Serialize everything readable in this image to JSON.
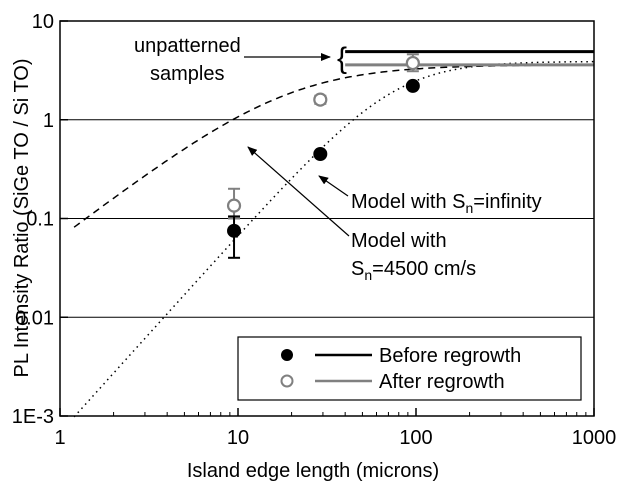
{
  "chart_data": {
    "type": "scatter",
    "xscale": "log",
    "yscale": "log",
    "xlim": [
      1,
      1000
    ],
    "ylim": [
      0.001,
      10
    ],
    "grid": "horizontal",
    "xlabel": "Island edge length (microns)",
    "ylabel": "PL Intensity Ratio (SiGe TO / Si TO)",
    "x_ticks": [
      {
        "value": 1,
        "label": "1"
      },
      {
        "value": 10,
        "label": "10"
      },
      {
        "value": 100,
        "label": "100"
      },
      {
        "value": 1000,
        "label": "1000"
      }
    ],
    "y_ticks": [
      {
        "value": 0.001,
        "label": "1E-3"
      },
      {
        "value": 0.01,
        "label": "0.01"
      },
      {
        "value": 0.1,
        "label": "0.1"
      },
      {
        "value": 1,
        "label": "1"
      },
      {
        "value": 10,
        "label": "10"
      }
    ],
    "series": [
      {
        "name": "Before regrowth",
        "marker": "filled-circle",
        "color": "#000000",
        "points": [
          {
            "x": 9.5,
            "y": 0.075,
            "err_low": 0.04,
            "err_high": 0.105
          },
          {
            "x": 29,
            "y": 0.45
          },
          {
            "x": 96,
            "y": 2.2
          }
        ]
      },
      {
        "name": "After regrowth",
        "marker": "open-circle",
        "color": "#808080",
        "points": [
          {
            "x": 9.5,
            "y": 0.135,
            "err_low": 0.1,
            "err_high": 0.2
          },
          {
            "x": 29,
            "y": 1.6,
            "err_low": 1.45,
            "err_high": 1.75
          },
          {
            "x": 96,
            "y": 3.75,
            "err_low": 3.1,
            "err_high": 4.6
          }
        ]
      }
    ],
    "reference_lines": [
      {
        "series": "Before regrowth",
        "y": 4.9,
        "x_range": [
          40,
          1000
        ],
        "color": "#000000"
      },
      {
        "series": "After regrowth",
        "y": 3.6,
        "x_range": [
          40,
          1000
        ],
        "color": "#808080"
      }
    ],
    "model_curves": [
      {
        "style": "dashed",
        "x_range": [
          1.2,
          1000
        ],
        "Sn_cm_per_s": 4500
      },
      {
        "style": "dotted",
        "x_range": [
          1.2,
          1000
        ],
        "Sn": "infinity"
      }
    ],
    "annotations": {
      "unpatterned_line1": "unpatterned",
      "unpatterned_line2": "samples",
      "brace": "{",
      "model_inf_prefix": "Model with S",
      "model_inf_sub": "n",
      "model_inf_suffix": "=infinity",
      "model_4500_line1": "Model with",
      "model_4500_s": "S",
      "model_4500_sub": "n",
      "model_4500_suffix": "=4500 cm/s"
    },
    "legend": {
      "placement": "bottom-right",
      "entries": [
        {
          "label": "Before regrowth",
          "marker": "filled-circle",
          "line_color": "#000000"
        },
        {
          "label": "After regrowth",
          "marker": "open-circle",
          "line_color": "#808080"
        }
      ]
    }
  }
}
